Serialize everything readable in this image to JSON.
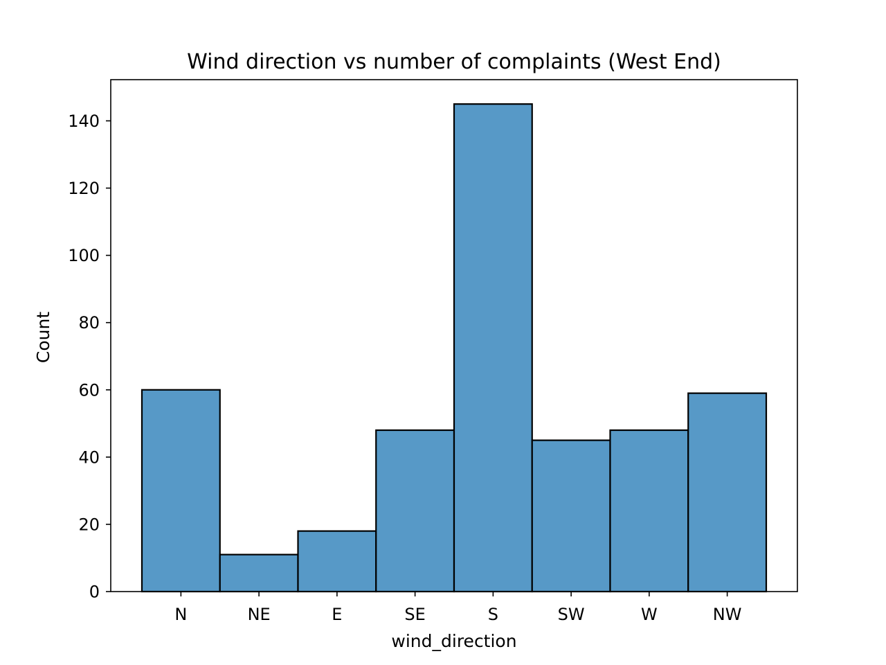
{
  "chart_data": {
    "type": "bar",
    "title": "Wind direction vs number of complaints (West End)",
    "xlabel": "wind_direction",
    "ylabel": "Count",
    "categories": [
      "N",
      "NE",
      "E",
      "SE",
      "S",
      "SW",
      "W",
      "NW"
    ],
    "values": [
      60,
      11,
      18,
      48,
      145,
      45,
      48,
      59
    ],
    "ylim": [
      0,
      152.25
    ],
    "yticks": [
      0,
      20,
      40,
      60,
      80,
      100,
      120,
      140
    ],
    "ytick_labels": [
      "0",
      "20",
      "40",
      "60",
      "80",
      "100",
      "120",
      "140"
    ],
    "grid": false,
    "legend": "none",
    "colors": {
      "bar_fill": "#5799c7",
      "bar_edge": "#000000",
      "axes": "#000000"
    }
  }
}
